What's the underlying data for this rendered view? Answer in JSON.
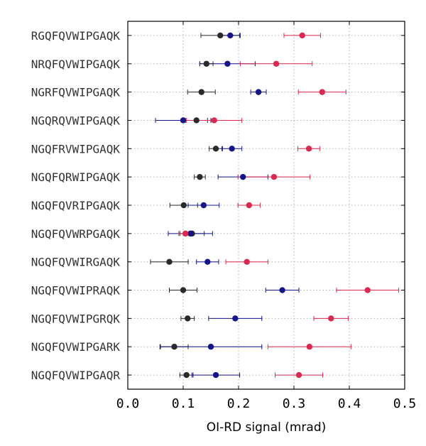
{
  "chart_data": {
    "type": "scatter",
    "title": "",
    "xlabel": "OI-RD signal (mrad)",
    "ylabel": "",
    "xlim": [
      0.0,
      0.5
    ],
    "x_ticks": [
      "0.0",
      "0.1",
      "0.2",
      "0.3",
      "0.4",
      "0.5"
    ],
    "grid": true,
    "categories": [
      "RGQFQVWIPGAQK",
      "NRQFQVWIPGAQK",
      "NGRFQVWIPGAQK",
      "NGQRQVWIPGAQK",
      "NGQFRVWIPGAQK",
      "NGQFQRWIPGAQK",
      "NGQFQVRIPGAQK",
      "NGQFQVWRPGAQK",
      "NGQFQVWIRGAQK",
      "NGQFQVWIPRAQK",
      "NGQFQVWIPGRQK",
      "NGQFQVWIPGARK",
      "NGQFQVWIPGAQR"
    ],
    "series": [
      {
        "color": "#2a2a2a",
        "values": [
          0.167,
          0.142,
          0.133,
          0.124,
          0.159,
          0.13,
          0.101,
          0.116,
          0.075,
          0.1,
          0.108,
          0.084,
          0.106
        ],
        "errors": [
          0.035,
          0.012,
          0.025,
          0.02,
          0.012,
          0.01,
          0.025,
          0.022,
          0.034,
          0.025,
          0.012,
          0.025,
          0.012
        ]
      },
      {
        "color": "#14148c",
        "values": [
          0.185,
          0.18,
          0.236,
          0.1,
          0.188,
          0.208,
          0.137,
          0.113,
          0.144,
          0.279,
          0.194,
          0.15,
          0.159
        ],
        "errors": [
          0.018,
          0.05,
          0.014,
          0.05,
          0.018,
          0.045,
          0.028,
          0.04,
          0.02,
          0.03,
          0.048,
          0.092,
          0.043
        ]
      },
      {
        "color": "#dc2850",
        "values": [
          0.315,
          0.268,
          0.351,
          0.156,
          0.327,
          0.264,
          0.219,
          0.104,
          0.215,
          0.433,
          0.367,
          0.328,
          0.309
        ],
        "errors": [
          0.033,
          0.065,
          0.043,
          0.05,
          0.02,
          0.065,
          0.02,
          0.012,
          0.038,
          0.056,
          0.031,
          0.075,
          0.043
        ]
      }
    ]
  }
}
